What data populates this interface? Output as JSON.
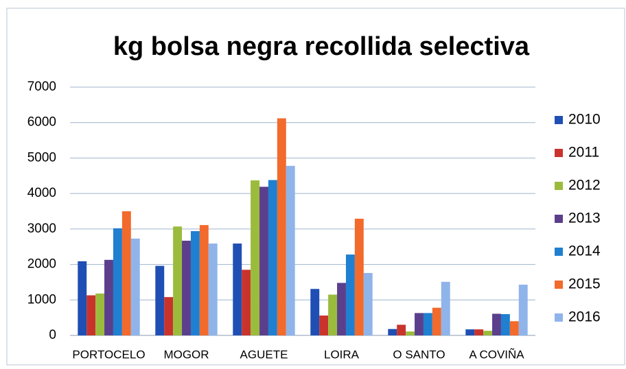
{
  "chart_data": {
    "type": "bar",
    "title": "kg bolsa negra recollida selectiva",
    "categories": [
      "PORTOCELO",
      "MOGOR",
      "AGUETE",
      "LOIRA",
      "O SANTO",
      "A COVIÑA"
    ],
    "series": [
      {
        "name": "2010",
        "color": "#1f4fb4",
        "values": [
          2090,
          1960,
          2590,
          1310,
          180,
          170
        ]
      },
      {
        "name": "2011",
        "color": "#c8342c",
        "values": [
          1130,
          1080,
          1850,
          560,
          300,
          170
        ]
      },
      {
        "name": "2012",
        "color": "#9bbb3c",
        "values": [
          1180,
          3070,
          4370,
          1150,
          110,
          130
        ]
      },
      {
        "name": "2013",
        "color": "#5b3f8c",
        "values": [
          2130,
          2670,
          4190,
          1480,
          630,
          610
        ]
      },
      {
        "name": "2014",
        "color": "#1f7fd0",
        "values": [
          3020,
          2940,
          4380,
          2280,
          630,
          600
        ]
      },
      {
        "name": "2015",
        "color": "#f26a2c",
        "values": [
          3500,
          3110,
          6120,
          3290,
          780,
          400
        ]
      },
      {
        "name": "2016",
        "color": "#8fb4ea",
        "values": [
          2730,
          2590,
          4780,
          1760,
          1510,
          1430
        ]
      }
    ],
    "ylim": [
      0,
      7000
    ],
    "yticks": [
      0,
      1000,
      2000,
      3000,
      4000,
      5000,
      6000,
      7000
    ],
    "grid": true,
    "legend": "right"
  }
}
